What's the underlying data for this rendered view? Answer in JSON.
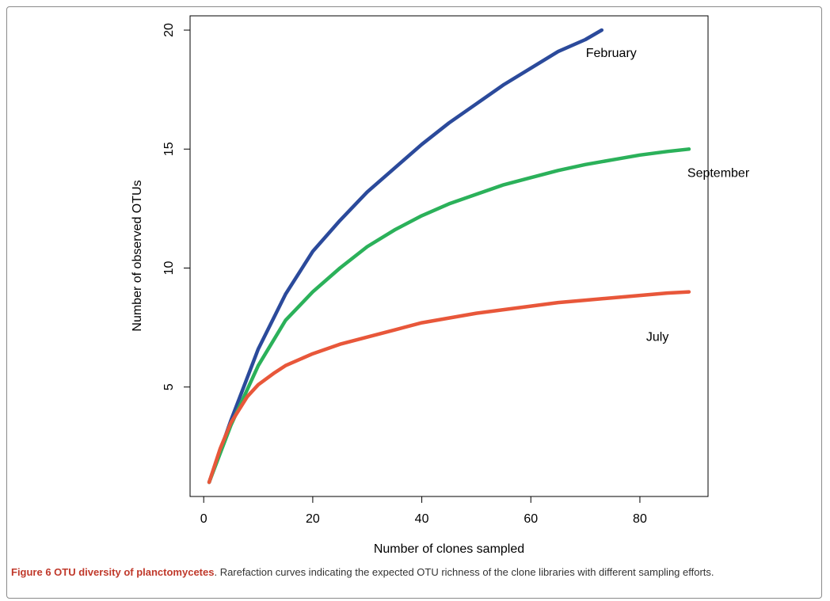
{
  "chart_data": {
    "type": "line",
    "title": "",
    "xlabel": "Number of clones sampled",
    "ylabel": "Number of observed OTUs",
    "xlim": [
      -2.5,
      92.5
    ],
    "ylim": [
      0.4,
      20.6
    ],
    "xticks": [
      0,
      20,
      40,
      60,
      80
    ],
    "yticks": [
      5,
      10,
      15,
      20
    ],
    "grid": false,
    "legend": "none",
    "series": [
      {
        "name": "February",
        "color": "#2b4a9b",
        "x": [
          1,
          5,
          10,
          15,
          20,
          25,
          30,
          35,
          40,
          45,
          50,
          55,
          60,
          65,
          70,
          73
        ],
        "y": [
          1,
          3.6,
          6.6,
          8.9,
          10.7,
          12.0,
          13.2,
          14.2,
          15.2,
          16.1,
          16.9,
          17.7,
          18.4,
          19.1,
          19.6,
          20.0
        ]
      },
      {
        "name": "September",
        "color": "#2bb15a",
        "x": [
          1,
          5,
          10,
          15,
          20,
          25,
          30,
          35,
          40,
          45,
          50,
          55,
          60,
          65,
          70,
          75,
          80,
          85,
          89
        ],
        "y": [
          1,
          3.4,
          5.9,
          7.8,
          9.0,
          10.0,
          10.9,
          11.6,
          12.2,
          12.7,
          13.1,
          13.5,
          13.8,
          14.1,
          14.35,
          14.55,
          14.75,
          14.9,
          15.0
        ]
      },
      {
        "name": "July",
        "color": "#e8573a",
        "x": [
          1,
          3,
          5,
          8,
          10,
          13,
          15,
          20,
          25,
          30,
          35,
          40,
          45,
          50,
          55,
          60,
          65,
          70,
          75,
          80,
          85,
          89
        ],
        "y": [
          1,
          2.4,
          3.5,
          4.6,
          5.1,
          5.6,
          5.9,
          6.4,
          6.8,
          7.1,
          7.4,
          7.7,
          7.9,
          8.1,
          8.25,
          8.4,
          8.55,
          8.65,
          8.75,
          8.85,
          8.95,
          9.0
        ]
      }
    ]
  },
  "caption": {
    "label": "Figure 6 OTU diversity of planctomycetes",
    "text": ". Rarefaction curves indicating the expected OTU richness of the clone libraries with different sampling efforts."
  }
}
